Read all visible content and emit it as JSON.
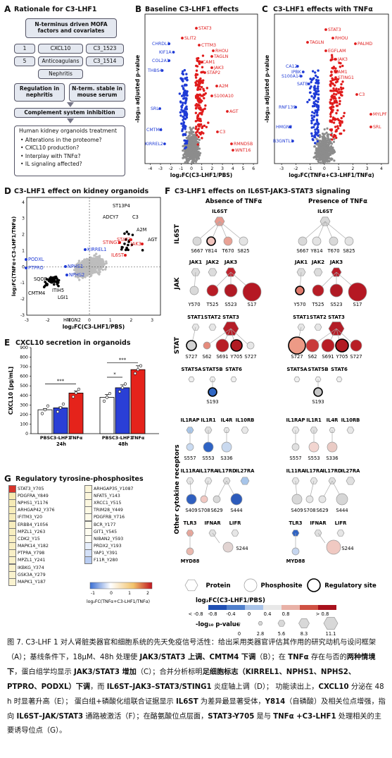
{
  "panelA": {
    "label": "A",
    "title": "Rationale for C3-LHF1",
    "mofa": "N-terminus driven MOFA factors and covariates",
    "row1": [
      "1",
      "CXCL10",
      "C3_1523"
    ],
    "row2": [
      "5",
      "Anticoagulans",
      "C3_1514"
    ],
    "row3": "Nephritis",
    "reg": "Regulation in nephritis",
    "nterm": "N-term. stable in mouse serum",
    "complement": "Complement system inhibition",
    "organoid_title": "Human kidney organoids treatment",
    "bullets": [
      "Alterations in the proteome?",
      "CXCL10 production?",
      "Interplay with TNFα?",
      "IL signaling affected?"
    ]
  },
  "panelB": {
    "label": "B",
    "title": "Baseline C3-LHF1 effects",
    "xlabel": "log₂FC(C3-LHF1/PBS)",
    "ylabel": "-log₁₀ adjusted p-value",
    "xticks": [
      "-4",
      "-3",
      "-2",
      "-1",
      "0",
      "1",
      "2",
      "3",
      "4",
      "5",
      "6"
    ],
    "red_labels": [
      "STAT3",
      "SLIT2",
      "CTTM3",
      "RHOU",
      "TAGLN",
      "ICAM1",
      "JAK3",
      "STAP2",
      "A2M",
      "S100A10",
      "AGT",
      "C3",
      "RMND5B",
      "WNT16"
    ],
    "blue_labels": [
      "CHRDL1",
      "KIF1A",
      "COL2A1",
      "THBS4",
      "SRL",
      "CMTM4",
      "KIRREL2"
    ]
  },
  "panelC": {
    "label": "C",
    "title": "C3-LHF1 effects with TNFα",
    "xlabel": "log₂FC(TNFα+C3-LHF1/TNFα)",
    "ylabel": "-log₁₀ adjusted p-value",
    "xticks": [
      "-3",
      "-2",
      "-1",
      "0",
      "1",
      "2",
      "3",
      "4"
    ],
    "red_labels": [
      "STAT3",
      "TAGLN",
      "RHOU",
      "EGFLAM",
      "PALMD",
      "JAK3",
      "ICAM1",
      "STING1",
      "C3",
      "MYLPF",
      "SRL"
    ],
    "blue_labels": [
      "CA12",
      "IPBK",
      "S100A14",
      "SATB",
      "RNF139",
      "HMGN2",
      "B3GNTL1"
    ]
  },
  "panelD": {
    "label": "D",
    "title": "C3-LHF1 effect on kidney organoids",
    "xlabel": "log₂FC(C3-LHF1/PBS)",
    "ylabel": "log₂FC(TNFα+C3-LHF1/TNFα)",
    "xticks": [
      "-3",
      "-2",
      "-1",
      "0",
      "1",
      "2",
      "3"
    ],
    "yticks": [
      "4",
      "3",
      "2",
      "1",
      "0",
      "-1",
      "-2",
      "-3"
    ],
    "black_labels": [
      "ST13P4",
      "ADCY7",
      "C3",
      "A2M",
      "AGT",
      "SQOR",
      "ITIH5",
      "CMTM4",
      "LGI1",
      "HMGN2"
    ],
    "red_labels": [
      "STING1",
      "STAT3",
      "JAK3",
      "IL6ST"
    ],
    "blue_labels": [
      "KIRREL1",
      "PODXL",
      "PTPRO",
      "NPHS1",
      "NPHS2"
    ]
  },
  "panelE": {
    "label": "E",
    "title": "CXCL10 secretion in organoids",
    "ylabel": "CXCL10 [pg/mL]",
    "yticks": [
      "0",
      "100",
      "200",
      "300",
      "400",
      "500",
      "600",
      "700",
      "800",
      "900"
    ],
    "bar_labels": [
      "PBS",
      "C3-LHF1",
      "TNFα",
      "PBS",
      "C3-LHF1",
      "TNFα"
    ],
    "time_labels": [
      "24h",
      "48h"
    ],
    "sig": [
      "***",
      "*",
      "***"
    ]
  },
  "chart_data": {
    "type": "bar",
    "title": "CXCL10 secretion in organoids",
    "ylabel": "CXCL10 [pg/mL]",
    "ylim": [
      0,
      900
    ],
    "categories": [
      "PBS 24h",
      "C3-LHF1 24h",
      "TNFα 24h",
      "PBS 48h",
      "C3-LHF1 48h",
      "TNFα 48h"
    ],
    "values": [
      250,
      270,
      425,
      380,
      480,
      670
    ],
    "colors": [
      "#ffffff",
      "#2a3fd6",
      "#e5231b",
      "#ffffff",
      "#2a3fd6",
      "#e5231b"
    ]
  },
  "panelF": {
    "label": "F",
    "title": "C3-LHF1 effects on IL6ST-JAK3-STAT3 signaling",
    "col_absence": "Absence of TNFα",
    "col_presence": "Presence of TNFα",
    "rows": [
      "IL6ST",
      "JAK",
      "STAT",
      "Other cytokine receptors"
    ],
    "il6st_sites": [
      "S667",
      "Y814",
      "T670",
      "S825"
    ],
    "jak_names": [
      "JAK1",
      "JAK2",
      "JAK3"
    ],
    "jak_sites": [
      "Y570",
      "T525",
      "S523",
      "S17"
    ],
    "stat_names": [
      "STAT1",
      "STAT2",
      "STAT3"
    ],
    "stat_sites": [
      "S727",
      "S62",
      "S691",
      "Y705",
      "S727"
    ],
    "stat_names2": [
      "STAT5A",
      "STAT5B",
      "STAT6"
    ],
    "stat_site2": "S193",
    "rec_names1": [
      "IL1RAP",
      "IL1R1",
      "IL4R",
      "IL10RB"
    ],
    "rec_sites1": [
      "S557",
      "S553",
      "S336"
    ],
    "rec_names2": [
      "IL11RA",
      "IL17RA",
      "IL17RD",
      "IL27RA"
    ],
    "rec_sites2": [
      "S409",
      "S708",
      "S629",
      "S444"
    ],
    "rec_names3": [
      "TLR3",
      "IFNAR",
      "LIFR"
    ],
    "rec_sites3": [
      "MYD88",
      "S244"
    ],
    "il6st_name": "IL6ST",
    "legend_protein": "Protein",
    "legend_phospho": "Phosphosite",
    "legend_reg": "Regulatory site",
    "legend_fc_title": "log₂FC(C3-LHF1/PBS)",
    "legend_fc_ticks": [
      "< -0.8",
      "-0.8",
      "-0.4",
      "0",
      "0.4",
      "0.8",
      "> 0.8"
    ],
    "legend_p_title": "-log₁₀ p-value",
    "legend_p_ticks": [
      "0",
      "2.8",
      "5.6",
      "8.3",
      "11.1"
    ]
  },
  "panelG": {
    "label": "G",
    "title": "Regulatory tyrosine-phosphosites",
    "left": [
      "STAT3_Y705",
      "PDGFRA_Y849",
      "NPHS1_Y1176",
      "ARHGAP42_Y376",
      "IFITM3_Y20",
      "ERBB4_Y1056",
      "MPZL1_Y263",
      "CDK2_Y15",
      "MAPK14_Y182",
      "PTPRA_Y798",
      "MPZL1_Y241",
      "IKBKG_Y374",
      "GSK3A_Y279",
      "MAPK1_Y187"
    ],
    "right": [
      "ARHGAP35_Y1087",
      "NFAT5_Y143",
      "XRCC1_Y515",
      "TRIM28_Y449",
      "PDGFRB_Y716",
      "BCR_Y177",
      "GIT1_Y545",
      "NIBAN2_Y593",
      "PRDX2_Y193",
      "YAP1_Y391",
      "F11R_Y280"
    ],
    "legend_ticks": [
      "-1",
      "0",
      "1",
      "2"
    ],
    "legend_title": "log₂FC(TNFα+C3-LHF1/TNFα)"
  },
  "caption": {
    "p1": "图 7. C3-LHF 1 对人肾脏类器官和细胞系统的先天免疫信号活性：给出采用类器官评估其作用的研究动机与设问框架（A）；基线条件下，18μM、48h 处理使 ",
    "b1": "JAK3/STAT3 上调、CMTM4 下调",
    "p2": "（B）；在 ",
    "b2": "TNFα",
    "p3": " 存在与否的",
    "b3": "两种情境下",
    "p4": "，蛋白组学均显示 ",
    "b4": "JAK3/STAT3 增加",
    "p5": "（C）；合并分析标明",
    "b5": "足细胞标志（KIRREL1、NPHS1、NPHS2、PTPRO、PODXL）下调",
    "p6": "，而 ",
    "b6": "IL6ST–JAK3–STAT3/STING1",
    "p7": " 炎症轴上调（D）； 功能读出上，",
    "b7": "CXCL10",
    "p8": " 分泌在 48 h 时显著升高（E）； 蛋白组+磷酸化组联合证据显示 ",
    "b8": "IL6ST",
    "p9": " 为差异最显著受体，",
    "b9": "Y814",
    "p10": "（自磷酸）及相关位点增强，指向 ",
    "b10": "IL6ST–JAK/STAT3",
    "p11": " 通路被激活（F）；在酪氨酸位点层面，",
    "b11": "STAT3-Y705",
    "p12": " 是与 ",
    "b12": "TNFα +C3-LHF1",
    "p13": " 处理相关的主要诱导位点（G）。"
  }
}
